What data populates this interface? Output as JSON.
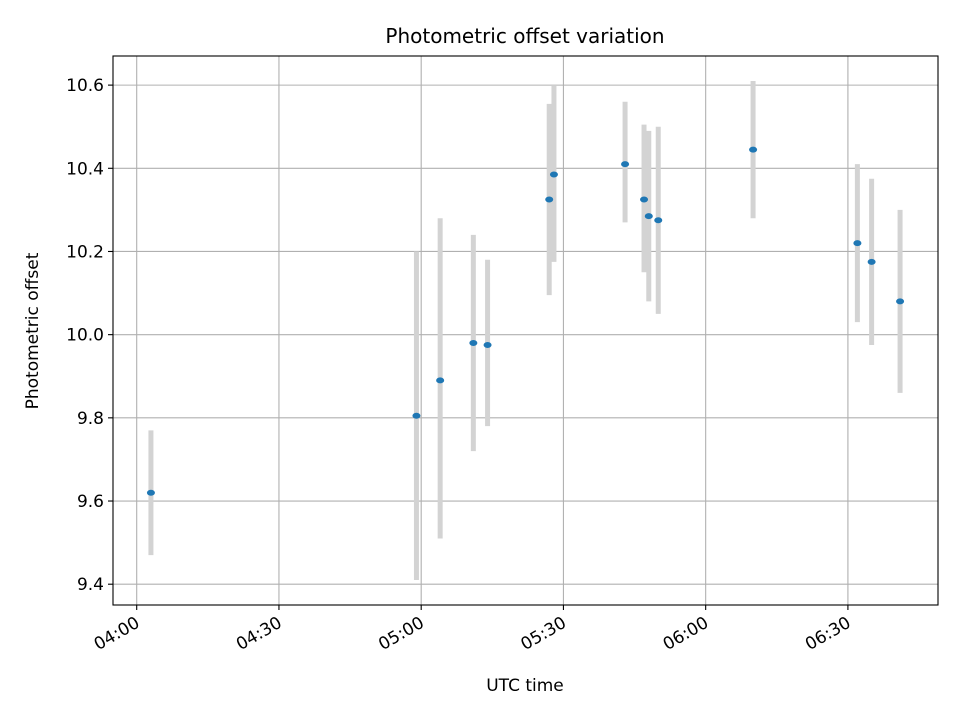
{
  "chart_data": {
    "type": "scatter",
    "title": "Photometric offset variation",
    "xlabel": "UTC time",
    "ylabel": "Photometric offset",
    "x_ticks": [
      "04:00",
      "04:30",
      "05:00",
      "05:30",
      "06:00",
      "06:30"
    ],
    "y_ticks": [
      "9.4",
      "9.6",
      "9.8",
      "10.0",
      "10.2",
      "10.4",
      "10.6"
    ],
    "xlim": [
      "03:55",
      "06:49"
    ],
    "ylim": [
      9.35,
      10.67
    ],
    "grid": true,
    "legend": "none",
    "marker_color": "#1f77b4",
    "errorbar_color": "#d3d3d3",
    "points": [
      {
        "x": "04:03",
        "y": 9.62,
        "yerr_low": 9.47,
        "yerr_high": 9.77
      },
      {
        "x": "04:59",
        "y": 9.805,
        "yerr_low": 9.41,
        "yerr_high": 10.2
      },
      {
        "x": "05:04",
        "y": 9.89,
        "yerr_low": 9.51,
        "yerr_high": 10.28
      },
      {
        "x": "05:11",
        "y": 9.98,
        "yerr_low": 9.72,
        "yerr_high": 10.24
      },
      {
        "x": "05:14",
        "y": 9.975,
        "yerr_low": 9.78,
        "yerr_high": 10.18
      },
      {
        "x": "05:27",
        "y": 10.325,
        "yerr_low": 10.095,
        "yerr_high": 10.555
      },
      {
        "x": "05:28",
        "y": 10.385,
        "yerr_low": 10.175,
        "yerr_high": 10.6
      },
      {
        "x": "05:43",
        "y": 10.41,
        "yerr_low": 10.27,
        "yerr_high": 10.56
      },
      {
        "x": "05:47",
        "y": 10.325,
        "yerr_low": 10.15,
        "yerr_high": 10.505
      },
      {
        "x": "05:48",
        "y": 10.285,
        "yerr_low": 10.08,
        "yerr_high": 10.49
      },
      {
        "x": "05:50",
        "y": 10.275,
        "yerr_low": 10.05,
        "yerr_high": 10.5
      },
      {
        "x": "06:10",
        "y": 10.445,
        "yerr_low": 10.28,
        "yerr_high": 10.61
      },
      {
        "x": "06:32",
        "y": 10.22,
        "yerr_low": 10.03,
        "yerr_high": 10.41
      },
      {
        "x": "06:35",
        "y": 10.175,
        "yerr_low": 9.975,
        "yerr_high": 10.375
      },
      {
        "x": "06:41",
        "y": 10.08,
        "yerr_low": 9.86,
        "yerr_high": 10.3
      }
    ]
  }
}
